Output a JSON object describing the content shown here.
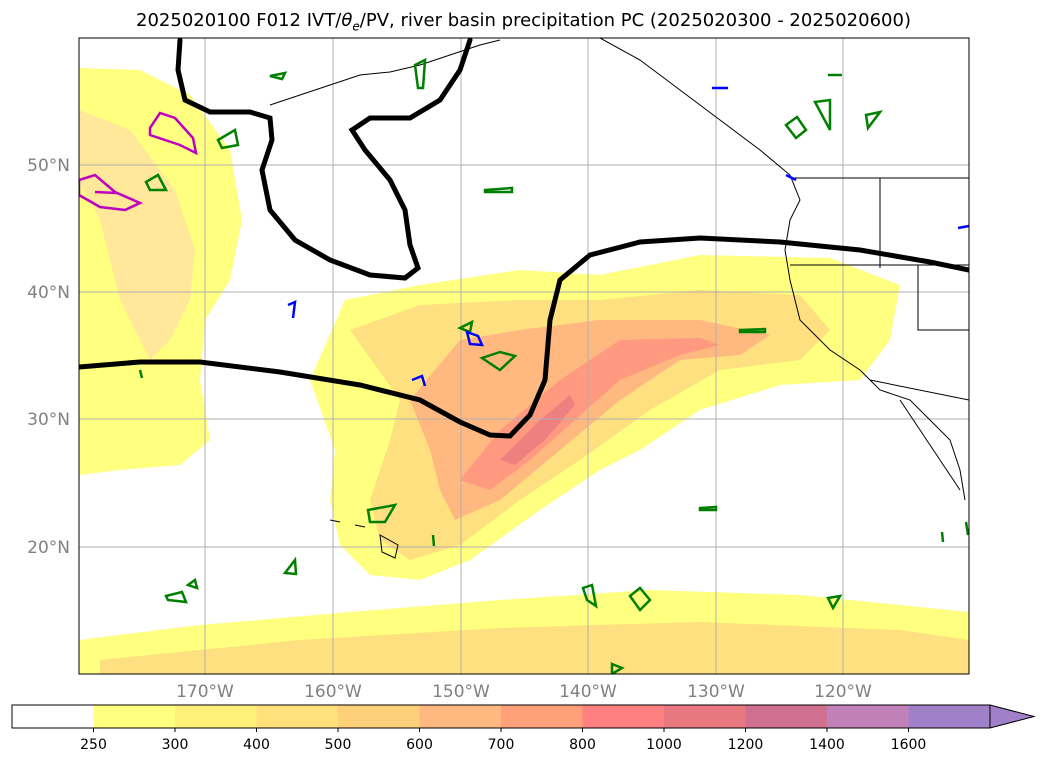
{
  "title": {
    "prefix": "2025020100 F012 IVT/",
    "theta": "θ",
    "theta_sub": "e",
    "suffix": "/PV, river basin precipitation PC (2025020300 - 2025020600)"
  },
  "map": {
    "lat_labels": [
      "50°N",
      "40°N",
      "30°N",
      "20°N"
    ],
    "lon_labels": [
      "170°W",
      "160°W",
      "150°W",
      "140°W",
      "130°W",
      "120°W"
    ],
    "colors": {
      "land_outline": "#000000",
      "gridline": "#b0b0b0",
      "pv_contour": "#000000",
      "green_contour": "#008000",
      "blue_contour": "#0000ff",
      "magenta_contour": "#c000c0"
    }
  },
  "colorbar": {
    "labels": [
      "250",
      "300",
      "400",
      "500",
      "600",
      "700",
      "800",
      "1000",
      "1200",
      "1400",
      "1600"
    ],
    "colors": [
      "#ffffff",
      "#ffff80",
      "#fff07a",
      "#ffe07a",
      "#ffd07a",
      "#ffb880",
      "#ffa07a",
      "#ff8080",
      "#e87880",
      "#d07090",
      "#c080b8",
      "#a080c8"
    ],
    "extend": "max"
  }
}
